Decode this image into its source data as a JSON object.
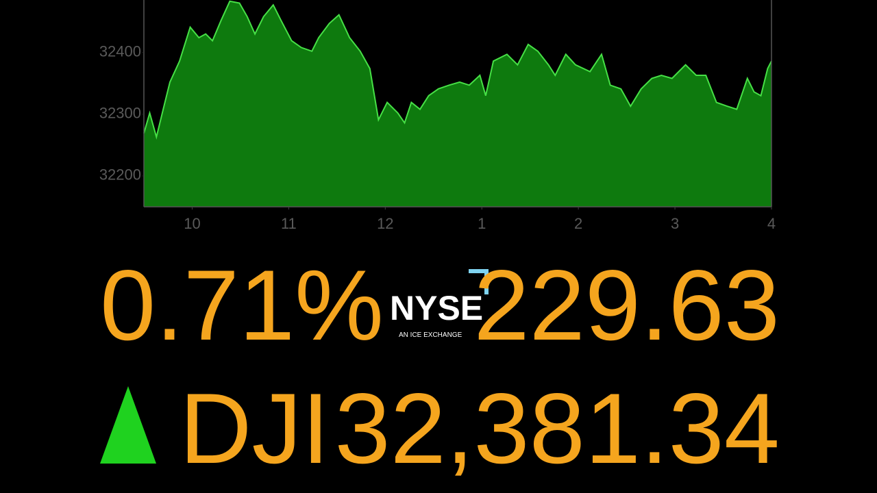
{
  "chart_data": {
    "type": "area",
    "x": [
      9.5,
      9.56,
      9.63,
      9.7,
      9.77,
      9.87,
      9.98,
      10.07,
      10.14,
      10.21,
      10.3,
      10.39,
      10.49,
      10.57,
      10.65,
      10.74,
      10.84,
      10.92,
      11.03,
      11.13,
      11.24,
      11.31,
      11.42,
      11.52,
      11.63,
      11.74,
      11.84,
      11.93,
      12.02,
      12.13,
      12.2,
      12.27,
      12.36,
      12.45,
      12.55,
      12.66,
      12.77,
      12.87,
      12.98,
      13.04,
      13.12,
      13.26,
      13.37,
      13.48,
      13.58,
      13.69,
      13.76,
      13.87,
      13.97,
      14.12,
      14.24,
      14.33,
      14.44,
      14.54,
      14.65,
      14.76,
      14.86,
      14.97,
      15.11,
      15.22,
      15.32,
      15.43,
      15.54,
      15.64,
      15.75,
      15.82,
      15.89,
      15.96,
      16.0
    ],
    "values": [
      32269,
      32302,
      32263,
      32308,
      32352,
      32386,
      32441,
      32424,
      32430,
      32419,
      32452,
      32483,
      32480,
      32458,
      32430,
      32458,
      32477,
      32452,
      32419,
      32408,
      32402,
      32424,
      32447,
      32461,
      32424,
      32402,
      32374,
      32291,
      32319,
      32302,
      32286,
      32319,
      32308,
      32330,
      32341,
      32347,
      32352,
      32347,
      32363,
      32330,
      32386,
      32397,
      32380,
      32413,
      32402,
      32380,
      32363,
      32397,
      32380,
      32369,
      32397,
      32347,
      32341,
      32313,
      32341,
      32358,
      32363,
      32358,
      32380,
      32363,
      32363,
      32319,
      32313,
      32308,
      32358,
      32336,
      32330,
      32374,
      32386
    ],
    "fill_color": "#0e7a0e",
    "line_color": "#46e046",
    "xlim": [
      9.5,
      16
    ],
    "ylim": [
      32150,
      32485
    ],
    "xticks": [
      10,
      11,
      12,
      {
        "value": 13,
        "label": "1"
      },
      {
        "value": 14,
        "label": "2"
      },
      {
        "value": 15,
        "label": "3"
      },
      {
        "value": 16,
        "label": "4"
      }
    ],
    "yticks": [
      32200,
      32300,
      32400
    ]
  },
  "ticker": {
    "percent_change": "0.71%",
    "exchange": "NYSE",
    "exchange_tagline": "AN ICE EXCHANGE",
    "point_change": "229.63",
    "symbol": "DJI",
    "price": "32,381.34"
  }
}
